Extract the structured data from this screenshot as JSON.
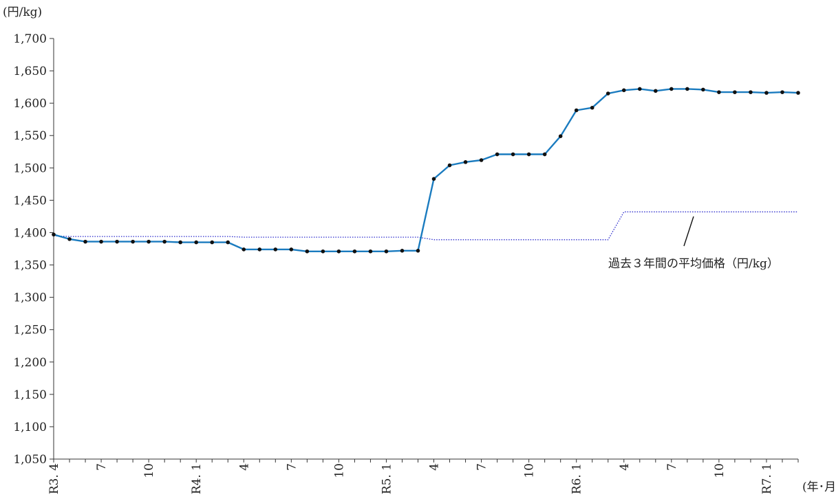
{
  "chart_data": {
    "type": "line",
    "y_unit_label": "(円/kg)",
    "x_unit_label": "(年･月)",
    "ylim": [
      1050,
      1700
    ],
    "yticks": [
      "1,050",
      "1,100",
      "1,150",
      "1,200",
      "1,250",
      "1,300",
      "1,350",
      "1,400",
      "1,450",
      "1,500",
      "1,550",
      "1,600",
      "1,650",
      "1,700"
    ],
    "x_tick_labels": [
      {
        "index": 0,
        "label": "R3. 4"
      },
      {
        "index": 3,
        "label": "7"
      },
      {
        "index": 6,
        "label": "10"
      },
      {
        "index": 9,
        "label": "R4. 1"
      },
      {
        "index": 12,
        "label": "4"
      },
      {
        "index": 15,
        "label": "7"
      },
      {
        "index": 18,
        "label": "10"
      },
      {
        "index": 21,
        "label": "R5. 1"
      },
      {
        "index": 24,
        "label": "4"
      },
      {
        "index": 27,
        "label": "7"
      },
      {
        "index": 30,
        "label": "10"
      },
      {
        "index": 33,
        "label": "R6. 1"
      },
      {
        "index": 36,
        "label": "4"
      },
      {
        "index": 39,
        "label": "7"
      },
      {
        "index": 42,
        "label": "10"
      },
      {
        "index": 45,
        "label": "R7. 1"
      }
    ],
    "series": [
      {
        "style": "solid-with-markers",
        "color": "#1a7bbf",
        "values": [
          1397,
          1390,
          1386,
          1386,
          1386,
          1386,
          1386,
          1386,
          1385,
          1385,
          1385,
          1385,
          1374,
          1374,
          1374,
          1374,
          1371,
          1371,
          1371,
          1371,
          1371,
          1371,
          1372,
          1372,
          1483,
          1504,
          1509,
          1512,
          1521,
          1521,
          1521,
          1521,
          1549,
          1589,
          1593,
          1615,
          1620,
          1622,
          1619,
          1622,
          1622,
          1621,
          1617,
          1617,
          1617,
          1616,
          1617,
          1616
        ]
      },
      {
        "name": "過去３年間の平均価格（円/kg）",
        "style": "dotted",
        "color": "#2a2acc",
        "values": [
          1395,
          1394,
          1394,
          1394,
          1394,
          1394,
          1394,
          1394,
          1394,
          1394,
          1394,
          1394,
          1393,
          1393,
          1393,
          1393,
          1393,
          1393,
          1393,
          1393,
          1393,
          1393,
          1393,
          1393,
          1389,
          1389,
          1389,
          1389,
          1389,
          1389,
          1389,
          1389,
          1389,
          1389,
          1389,
          1389,
          1432,
          1432,
          1432,
          1432,
          1432,
          1432,
          1432,
          1432,
          1432,
          1432,
          1432,
          1432
        ]
      }
    ]
  }
}
